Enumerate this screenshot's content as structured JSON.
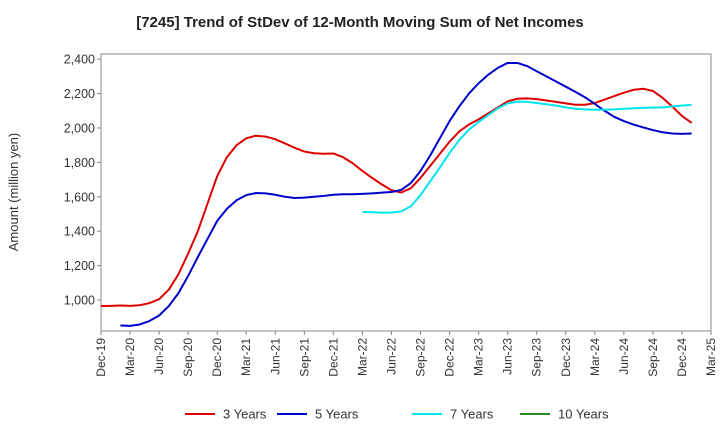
{
  "chart_data": {
    "type": "line",
    "title": "[7245]  Trend of StDev of 12-Month Moving Sum of Net Incomes",
    "xlabel": "",
    "ylabel": "Amount (million yen)",
    "x_tick_labels": [
      "Dec-19",
      "Mar-20",
      "Jun-20",
      "Sep-20",
      "Dec-20",
      "Mar-21",
      "Jun-21",
      "Sep-21",
      "Dec-21",
      "Mar-22",
      "Jun-22",
      "Sep-22",
      "Dec-22",
      "Mar-23",
      "Jun-23",
      "Sep-23",
      "Dec-23",
      "Mar-24",
      "Jun-24",
      "Sep-24",
      "Dec-24",
      "Mar-25"
    ],
    "y_ticks": [
      1000,
      1200,
      1400,
      1600,
      1800,
      2000,
      2200,
      2400
    ],
    "y_tick_labels": [
      "1,000",
      "1,200",
      "1,400",
      "1,600",
      "1,800",
      "2,000",
      "2,200",
      "2,400"
    ],
    "ylim": [
      820,
      2430
    ],
    "x_range_months": [
      0,
      63
    ],
    "grid": true,
    "legend_position": "bottom",
    "series": [
      {
        "name": "3 Years",
        "color": "#dd0000",
        "points": [
          [
            "Dec-19",
            965
          ],
          [
            "Jan-20",
            966
          ],
          [
            "Feb-20",
            968
          ],
          [
            "Mar-20",
            966
          ],
          [
            "Apr-20",
            970
          ],
          [
            "May-20",
            982
          ],
          [
            "Jun-20",
            1005
          ],
          [
            "Jul-20",
            1060
          ],
          [
            "Aug-20",
            1150
          ],
          [
            "Sep-20",
            1270
          ],
          [
            "Oct-20",
            1400
          ],
          [
            "Nov-20",
            1560
          ],
          [
            "Dec-20",
            1720
          ],
          [
            "Jan-21",
            1830
          ],
          [
            "Feb-21",
            1900
          ],
          [
            "Mar-21",
            1940
          ],
          [
            "Apr-21",
            1955
          ],
          [
            "May-21",
            1950
          ],
          [
            "Jun-21",
            1935
          ],
          [
            "Jul-21",
            1910
          ],
          [
            "Aug-21",
            1885
          ],
          [
            "Sep-21",
            1863
          ],
          [
            "Oct-21",
            1853
          ],
          [
            "Nov-21",
            1850
          ],
          [
            "Dec-21",
            1852
          ],
          [
            "Jan-22",
            1830
          ],
          [
            "Feb-22",
            1795
          ],
          [
            "Mar-22",
            1750
          ],
          [
            "Apr-22",
            1710
          ],
          [
            "May-22",
            1672
          ],
          [
            "Jun-22",
            1638
          ],
          [
            "Jul-22",
            1625
          ],
          [
            "Aug-22",
            1650
          ],
          [
            "Sep-22",
            1710
          ],
          [
            "Oct-22",
            1780
          ],
          [
            "Nov-22",
            1850
          ],
          [
            "Dec-22",
            1920
          ],
          [
            "Jan-23",
            1980
          ],
          [
            "Feb-23",
            2020
          ],
          [
            "Mar-23",
            2050
          ],
          [
            "Apr-23",
            2085
          ],
          [
            "May-23",
            2120
          ],
          [
            "Jun-23",
            2155
          ],
          [
            "Jul-23",
            2170
          ],
          [
            "Aug-23",
            2172
          ],
          [
            "Sep-23",
            2168
          ],
          [
            "Oct-23",
            2160
          ],
          [
            "Nov-23",
            2152
          ],
          [
            "Dec-23",
            2143
          ],
          [
            "Jan-24",
            2135
          ],
          [
            "Feb-24",
            2135
          ],
          [
            "Mar-24",
            2145
          ],
          [
            "Apr-24",
            2165
          ],
          [
            "May-24",
            2185
          ],
          [
            "Jun-24",
            2205
          ],
          [
            "Jul-24",
            2222
          ],
          [
            "Aug-24",
            2228
          ],
          [
            "Sep-24",
            2215
          ],
          [
            "Oct-24",
            2175
          ],
          [
            "Nov-24",
            2125
          ],
          [
            "Dec-24",
            2070
          ],
          [
            "Jan-25",
            2030
          ]
        ]
      },
      {
        "name": "5 Years",
        "color": "#0000cc",
        "points": [
          [
            "Feb-20",
            852
          ],
          [
            "Mar-20",
            850
          ],
          [
            "Apr-20",
            858
          ],
          [
            "May-20",
            878
          ],
          [
            "Jun-20",
            910
          ],
          [
            "Jul-20",
            965
          ],
          [
            "Aug-20",
            1040
          ],
          [
            "Sep-20",
            1140
          ],
          [
            "Oct-20",
            1250
          ],
          [
            "Nov-20",
            1355
          ],
          [
            "Dec-20",
            1460
          ],
          [
            "Jan-21",
            1530
          ],
          [
            "Feb-21",
            1580
          ],
          [
            "Mar-21",
            1610
          ],
          [
            "Apr-21",
            1622
          ],
          [
            "May-21",
            1620
          ],
          [
            "Jun-21",
            1612
          ],
          [
            "Jul-21",
            1600
          ],
          [
            "Aug-21",
            1593
          ],
          [
            "Sep-21",
            1595
          ],
          [
            "Oct-21",
            1600
          ],
          [
            "Nov-21",
            1605
          ],
          [
            "Dec-21",
            1612
          ],
          [
            "Jan-22",
            1615
          ],
          [
            "Feb-22",
            1615
          ],
          [
            "Mar-22",
            1617
          ],
          [
            "Apr-22",
            1620
          ],
          [
            "May-22",
            1624
          ],
          [
            "Jun-22",
            1628
          ],
          [
            "Jul-22",
            1640
          ],
          [
            "Aug-22",
            1680
          ],
          [
            "Sep-22",
            1750
          ],
          [
            "Oct-22",
            1840
          ],
          [
            "Nov-22",
            1940
          ],
          [
            "Dec-22",
            2040
          ],
          [
            "Jan-23",
            2125
          ],
          [
            "Feb-23",
            2200
          ],
          [
            "Mar-23",
            2260
          ],
          [
            "Apr-23",
            2310
          ],
          [
            "May-23",
            2350
          ],
          [
            "Jun-23",
            2378
          ],
          [
            "Jul-23",
            2378
          ],
          [
            "Aug-23",
            2360
          ],
          [
            "Sep-23",
            2330
          ],
          [
            "Oct-23",
            2300
          ],
          [
            "Nov-23",
            2270
          ],
          [
            "Dec-23",
            2240
          ],
          [
            "Jan-24",
            2210
          ],
          [
            "Feb-24",
            2178
          ],
          [
            "Mar-24",
            2140
          ],
          [
            "Apr-24",
            2100
          ],
          [
            "May-24",
            2065
          ],
          [
            "Jun-24",
            2040
          ],
          [
            "Jul-24",
            2020
          ],
          [
            "Aug-24",
            2003
          ],
          [
            "Sep-24",
            1988
          ],
          [
            "Oct-24",
            1975
          ],
          [
            "Nov-24",
            1968
          ],
          [
            "Dec-24",
            1966
          ],
          [
            "Jan-25",
            1968
          ]
        ]
      },
      {
        "name": "7 Years",
        "color": "#00e5ee",
        "points": [
          [
            "Mar-22",
            1512
          ],
          [
            "Apr-22",
            1510
          ],
          [
            "May-22",
            1508
          ],
          [
            "Jun-22",
            1508
          ],
          [
            "Jul-22",
            1515
          ],
          [
            "Aug-22",
            1545
          ],
          [
            "Sep-22",
            1610
          ],
          [
            "Oct-22",
            1690
          ],
          [
            "Nov-22",
            1770
          ],
          [
            "Dec-22",
            1855
          ],
          [
            "Jan-23",
            1930
          ],
          [
            "Feb-23",
            1990
          ],
          [
            "Mar-23",
            2035
          ],
          [
            "Apr-23",
            2075
          ],
          [
            "May-23",
            2115
          ],
          [
            "Jun-23",
            2143
          ],
          [
            "Jul-23",
            2153
          ],
          [
            "Aug-23",
            2152
          ],
          [
            "Sep-23",
            2145
          ],
          [
            "Oct-23",
            2138
          ],
          [
            "Nov-23",
            2130
          ],
          [
            "Dec-23",
            2120
          ],
          [
            "Jan-24",
            2112
          ],
          [
            "Feb-24",
            2108
          ],
          [
            "Mar-24",
            2106
          ],
          [
            "Apr-24",
            2106
          ],
          [
            "May-24",
            2108
          ],
          [
            "Jun-24",
            2112
          ],
          [
            "Jul-24",
            2115
          ],
          [
            "Aug-24",
            2117
          ],
          [
            "Sep-24",
            2118
          ],
          [
            "Oct-24",
            2120
          ],
          [
            "Nov-24",
            2125
          ],
          [
            "Dec-24",
            2130
          ],
          [
            "Jan-25",
            2135
          ]
        ]
      },
      {
        "name": "10 Years",
        "color": "#228b22",
        "points": []
      }
    ]
  }
}
